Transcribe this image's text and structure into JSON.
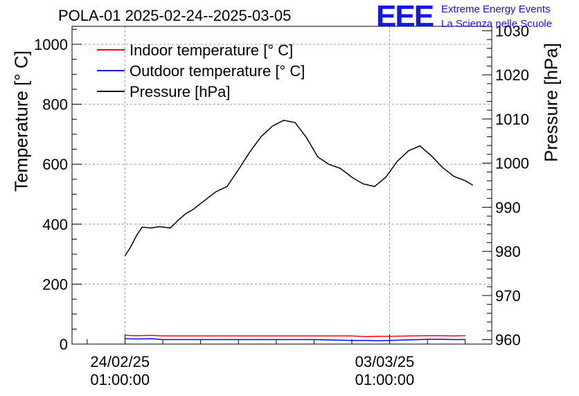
{
  "chart_data": {
    "type": "line",
    "title": "POLA-01 2025-02-24--2025-03-05",
    "ylabel_left": "Temperature [° C]",
    "ylabel_right": "Pressure [hPa]",
    "y_left_lim": [
      0,
      1060
    ],
    "y_right_lim": [
      959,
      1031
    ],
    "y_left_ticks": [
      0,
      200,
      400,
      600,
      800,
      1000
    ],
    "y_right_ticks": [
      960,
      970,
      980,
      990,
      1000,
      1010,
      1020,
      1030
    ],
    "x_tick_labels": [
      {
        "date": "24/02/25",
        "time": "01:00:00"
      },
      {
        "date": "03/03/25",
        "time": "01:00:00"
      }
    ],
    "x_range_days": [
      -1.4,
      9.7
    ],
    "grid": true,
    "legend_placement": "top-left",
    "series": [
      {
        "name": "Indoor temperature [° C]",
        "color": "#ff0000",
        "axis": "left",
        "x": [
          0.0,
          0.3,
          0.7,
          1.0,
          2.0,
          3.0,
          4.0,
          5.0,
          6.0,
          6.4,
          6.7,
          7.0,
          8.0,
          8.3,
          8.7,
          9.0
        ],
        "y": [
          29,
          28,
          29,
          27,
          27,
          27,
          27,
          27,
          27,
          25,
          26,
          26,
          28,
          28,
          27,
          28
        ]
      },
      {
        "name": "Outdoor temperature [° C]",
        "color": "#0000ff",
        "axis": "left",
        "x": [
          0.0,
          0.3,
          0.7,
          1.0,
          2.0,
          3.0,
          4.0,
          5.0,
          6.0,
          6.4,
          6.7,
          7.0,
          8.0,
          8.3,
          8.7,
          9.0
        ],
        "y": [
          18,
          17,
          18,
          15,
          15,
          15,
          15,
          15,
          12,
          12,
          11,
          12,
          16,
          16,
          15,
          15
        ]
      },
      {
        "name": "Pressure [hPa]",
        "color": "#000000",
        "axis": "right",
        "x": [
          0.0,
          0.15,
          0.3,
          0.45,
          0.7,
          0.9,
          1.2,
          1.4,
          1.6,
          1.8,
          2.1,
          2.4,
          2.7,
          3.0,
          3.3,
          3.6,
          3.9,
          4.2,
          4.5,
          4.8,
          5.1,
          5.4,
          5.7,
          6.0,
          6.3,
          6.6,
          6.9,
          7.2,
          7.5,
          7.8,
          8.1,
          8.4,
          8.7,
          9.0,
          9.2
        ],
        "y": [
          979.0,
          981.0,
          983.5,
          985.5,
          985.3,
          985.6,
          985.3,
          987.0,
          988.5,
          989.5,
          991.5,
          993.5,
          994.7,
          998.5,
          1002.5,
          1006.0,
          1008.4,
          1009.7,
          1009.2,
          1005.8,
          1001.4,
          999.7,
          998.8,
          996.8,
          995.3,
          994.7,
          996.8,
          1000.4,
          1002.8,
          1003.9,
          1001.7,
          999.0,
          997.0,
          996.0,
          995.0
        ]
      }
    ]
  }
}
